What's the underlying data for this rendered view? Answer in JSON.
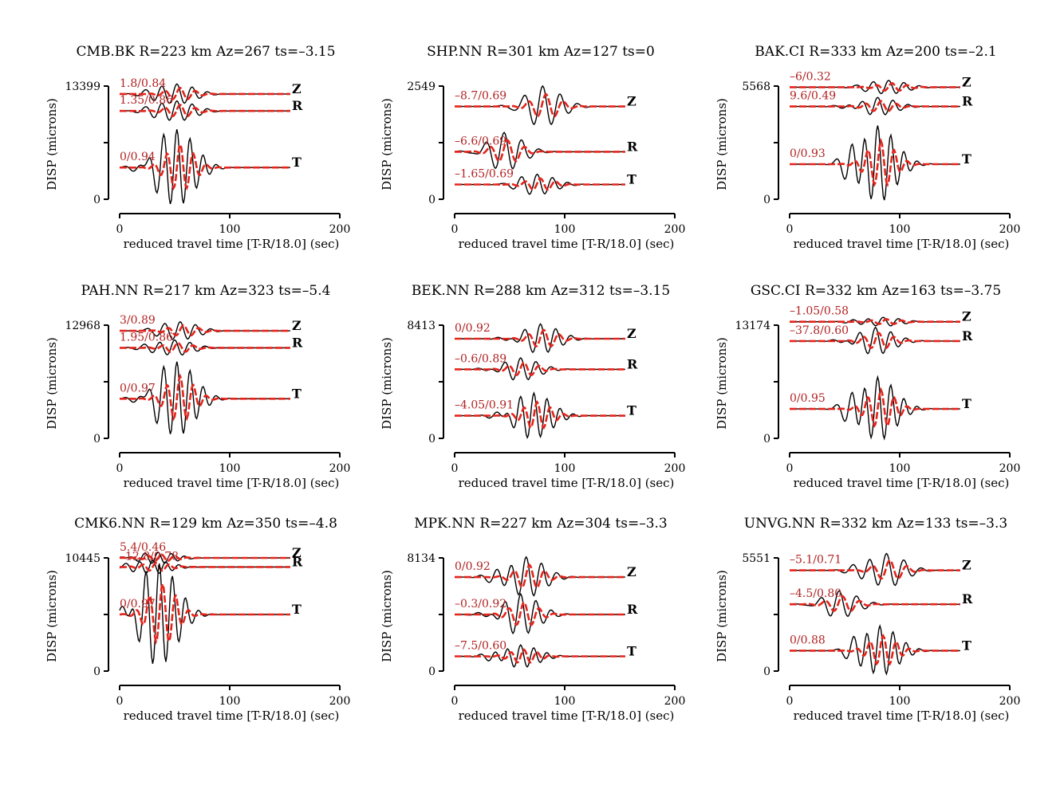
{
  "chart_data": [
    {
      "type": "line",
      "title": "CMB.BK R=223 km Az=267 ts=–3.15",
      "xlabel": "reduced travel time [T-R/18.0] (sec)",
      "ylabel": "DISP (microns)",
      "xlim": [
        0,
        200
      ],
      "xticks": [
        "0",
        "100",
        "200"
      ],
      "ylim": [
        0,
        13399
      ],
      "yticks": [
        "0",
        "13399"
      ],
      "traces": [
        {
          "component": "Z",
          "annotation": "1.8/0.84",
          "level": 0.93,
          "peak": 52,
          "amp": 0.09,
          "period": 14
        },
        {
          "component": "R",
          "annotation": "1.35/0.86",
          "level": 0.78,
          "peak": 52,
          "amp": 0.09,
          "period": 14
        },
        {
          "component": "T",
          "annotation": "0/0.94",
          "level": 0.28,
          "peak": 52,
          "amp": 0.34,
          "period": 12
        }
      ]
    },
    {
      "type": "line",
      "title": "SHP.NN R=301 km Az=127 ts=0",
      "xlabel": "reduced travel time [T-R/18.0] (sec)",
      "ylabel": "DISP (microns)",
      "xlim": [
        0,
        200
      ],
      "xticks": [
        "0",
        "100",
        "200"
      ],
      "ylim": [
        0,
        2549
      ],
      "yticks": [
        "0",
        "2549"
      ],
      "traces": [
        {
          "component": "Z",
          "annotation": "–8.7/0.69",
          "level": 0.82,
          "peak": 80,
          "amp": 0.18,
          "period": 16
        },
        {
          "component": "R",
          "annotation": "–6.6/0.69",
          "level": 0.42,
          "peak": 45,
          "amp": 0.17,
          "period": 16
        },
        {
          "component": "T",
          "annotation": "–1.65/0.69",
          "level": 0.13,
          "peak": 75,
          "amp": 0.09,
          "period": 14
        }
      ]
    },
    {
      "type": "line",
      "title": "BAK.CI R=333 km Az=200 ts=–2.1",
      "xlabel": "reduced travel time [T-R/18.0] (sec)",
      "ylabel": "DISP (microns)",
      "xlim": [
        0,
        200
      ],
      "xticks": [
        "0",
        "100",
        "200"
      ],
      "ylim": [
        0,
        5568
      ],
      "yticks": [
        "0",
        "5568"
      ],
      "traces": [
        {
          "component": "Z",
          "annotation": "–6/0.32",
          "level": 0.99,
          "peak": 90,
          "amp": 0.06,
          "period": 14
        },
        {
          "component": "R",
          "annotation": "9.6/0.49",
          "level": 0.82,
          "peak": 80,
          "amp": 0.08,
          "period": 14
        },
        {
          "component": "T",
          "annotation": "0/0.93",
          "level": 0.31,
          "peak": 80,
          "amp": 0.34,
          "period": 12
        }
      ]
    },
    {
      "type": "line",
      "title": "PAH.NN R=217 km Az=323 ts=–5.4",
      "xlabel": "reduced travel time [T-R/18.0] (sec)",
      "ylabel": "DISP (microns)",
      "xlim": [
        0,
        200
      ],
      "xticks": [
        "0",
        "100",
        "200"
      ],
      "ylim": [
        0,
        12968
      ],
      "yticks": [
        "0",
        "12968"
      ],
      "traces": [
        {
          "component": "Z",
          "annotation": "3/0.89",
          "level": 0.95,
          "peak": 55,
          "amp": 0.08,
          "period": 14
        },
        {
          "component": "R",
          "annotation": "1.95/0.86",
          "level": 0.8,
          "peak": 50,
          "amp": 0.07,
          "period": 14
        },
        {
          "component": "T",
          "annotation": "0/0.97",
          "level": 0.35,
          "peak": 52,
          "amp": 0.33,
          "period": 12
        }
      ]
    },
    {
      "type": "line",
      "title": "BEK.NN R=288 km Az=312 ts=–3.15",
      "xlabel": "reduced travel time [T-R/18.0] (sec)",
      "ylabel": "DISP (microns)",
      "xlim": [
        0,
        200
      ],
      "xticks": [
        "0",
        "100",
        "200"
      ],
      "ylim": [
        0,
        8413
      ],
      "yticks": [
        "0",
        "8413"
      ],
      "traces": [
        {
          "component": "Z",
          "annotation": "0/0.92",
          "level": 0.88,
          "peak": 78,
          "amp": 0.13,
          "period": 14
        },
        {
          "component": "R",
          "annotation": "–0.6/0.89",
          "level": 0.61,
          "peak": 60,
          "amp": 0.1,
          "period": 14
        },
        {
          "component": "T",
          "annotation": "–4.05/0.91",
          "level": 0.2,
          "peak": 72,
          "amp": 0.2,
          "period": 12
        }
      ]
    },
    {
      "type": "line",
      "title": "GSC.CI R=332 km Az=163 ts=–3.75",
      "xlabel": "reduced travel time [T-R/18.0] (sec)",
      "ylabel": "DISP (microns)",
      "xlim": [
        0,
        200
      ],
      "xticks": [
        "0",
        "100",
        "200"
      ],
      "ylim": [
        0,
        13174
      ],
      "yticks": [
        "0",
        "13174"
      ],
      "traces": [
        {
          "component": "Z",
          "annotation": "–1.05/0.58",
          "level": 1.03,
          "peak": 85,
          "amp": 0.04,
          "period": 14
        },
        {
          "component": "R",
          "annotation": "–37.8/0.60",
          "level": 0.86,
          "peak": 78,
          "amp": 0.12,
          "period": 14
        },
        {
          "component": "T",
          "annotation": "0/0.95",
          "level": 0.26,
          "peak": 80,
          "amp": 0.28,
          "period": 12
        }
      ]
    },
    {
      "type": "line",
      "title": "CMK6.NN R=129 km Az=350 ts=–4.8",
      "xlabel": "reduced travel time [T-R/18.0] (sec)",
      "ylabel": "DISP (microns)",
      "xlim": [
        0,
        200
      ],
      "xticks": [
        "0",
        "100",
        "200"
      ],
      "ylim": [
        0,
        10445
      ],
      "yticks": [
        "0",
        "10445"
      ],
      "traces": [
        {
          "component": "Z",
          "annotation": "5.4/0.46",
          "level": 1.0,
          "peak": 35,
          "amp": 0.05,
          "period": 12
        },
        {
          "component": "R",
          "annotation": "–12.8/0.78",
          "level": 0.92,
          "peak": 30,
          "amp": 0.06,
          "period": 12
        },
        {
          "component": "T",
          "annotation": "0/0.97",
          "level": 0.5,
          "peak": 36,
          "amp": 0.45,
          "period": 12
        }
      ]
    },
    {
      "type": "line",
      "title": "MPK.NN R=227 km Az=304 ts=–3.3",
      "xlabel": "reduced travel time [T-R/18.0] (sec)",
      "ylabel": "DISP (microns)",
      "xlim": [
        0,
        200
      ],
      "xticks": [
        "0",
        "100",
        "200"
      ],
      "ylim": [
        0,
        8134
      ],
      "yticks": [
        "0",
        "8134"
      ],
      "traces": [
        {
          "component": "Z",
          "annotation": "0/0.92",
          "level": 0.83,
          "peak": 65,
          "amp": 0.18,
          "period": 14
        },
        {
          "component": "R",
          "annotation": "–0.3/0.92",
          "level": 0.5,
          "peak": 60,
          "amp": 0.18,
          "period": 14
        },
        {
          "component": "T",
          "annotation": "–7.5/0.60",
          "level": 0.13,
          "peak": 60,
          "amp": 0.1,
          "period": 12
        }
      ]
    },
    {
      "type": "line",
      "title": "UNVG.NN R=332 km Az=133 ts=–3.3",
      "xlabel": "reduced travel time [T-R/18.0] (sec)",
      "ylabel": "DISP (microns)",
      "xlim": [
        0,
        200
      ],
      "xticks": [
        "0",
        "100",
        "200"
      ],
      "ylim": [
        0,
        5551
      ],
      "yticks": [
        "0",
        "5551"
      ],
      "traces": [
        {
          "component": "Z",
          "annotation": "–5.1/0.71",
          "level": 0.89,
          "peak": 88,
          "amp": 0.15,
          "period": 16
        },
        {
          "component": "R",
          "annotation": "–4.5/0.80",
          "level": 0.59,
          "peak": 45,
          "amp": 0.12,
          "period": 16
        },
        {
          "component": "T",
          "annotation": "0/0.88",
          "level": 0.18,
          "peak": 82,
          "amp": 0.22,
          "period": 12
        }
      ]
    }
  ],
  "colors": {
    "observed": "#000000",
    "synthetic": "#e3241b",
    "annotation": "#b22222"
  }
}
